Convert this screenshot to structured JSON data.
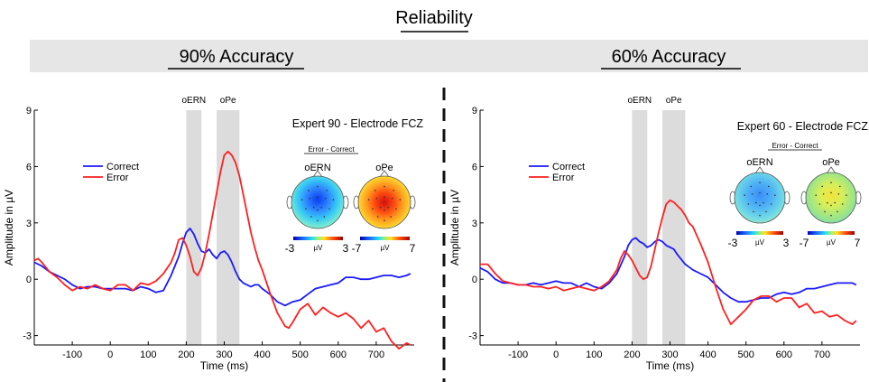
{
  "title": "Reliability",
  "colors": {
    "correct": "#1a1aff",
    "error": "#ff2020",
    "window": "#dcdcdc",
    "banner": "#e6e6e6"
  },
  "chart_data": [
    {
      "type": "line",
      "panel_title": "90% Accuracy",
      "title": "Expert 90 - Electrode FCZ",
      "xlabel": "Time (ms)",
      "ylabel": "Amplitude in  µV",
      "xlim": [
        -200,
        800
      ],
      "ylim": [
        -3.5,
        9
      ],
      "xticks": [
        -100,
        0,
        100,
        200,
        300,
        400,
        500,
        600,
        700
      ],
      "yticks": [
        -3,
        0,
        3,
        6,
        9
      ],
      "legend_position": "upper-left",
      "windows": [
        {
          "label": "oERN",
          "range": [
            200,
            240
          ]
        },
        {
          "label": "oPe",
          "range": [
            280,
            340
          ]
        }
      ],
      "topo_caption": "Error - Correct",
      "topos": [
        {
          "label": "oERN",
          "polarity": "negative",
          "scale": [
            "-3",
            "µV",
            "3"
          ]
        },
        {
          "label": "oPe",
          "polarity": "positive",
          "scale": [
            "-7",
            "µV",
            "7"
          ]
        }
      ],
      "series": [
        {
          "name": "Correct",
          "color": "#1a1aff",
          "x": [
            -200,
            -180,
            -160,
            -140,
            -120,
            -100,
            -80,
            -60,
            -40,
            -20,
            0,
            20,
            40,
            60,
            80,
            100,
            120,
            140,
            160,
            180,
            190,
            200,
            210,
            220,
            230,
            240,
            250,
            260,
            270,
            280,
            290,
            300,
            310,
            320,
            330,
            340,
            350,
            360,
            370,
            380,
            390,
            400,
            420,
            440,
            460,
            480,
            500,
            520,
            540,
            560,
            580,
            600,
            620,
            640,
            660,
            680,
            700,
            720,
            740,
            760,
            780,
            790
          ],
          "y": [
            0.9,
            0.7,
            0.4,
            0.2,
            0.0,
            -0.3,
            -0.5,
            -0.4,
            -0.4,
            -0.5,
            -0.5,
            -0.5,
            -0.5,
            -0.6,
            -0.4,
            -0.5,
            -0.7,
            -0.6,
            0.2,
            1.2,
            1.9,
            2.5,
            2.7,
            2.4,
            1.9,
            1.5,
            1.4,
            1.6,
            1.3,
            1.1,
            1.4,
            1.5,
            1.3,
            0.9,
            0.4,
            0.0,
            -0.2,
            -0.3,
            -0.4,
            -0.3,
            -0.3,
            -0.5,
            -0.8,
            -1.2,
            -1.4,
            -1.2,
            -1.1,
            -0.8,
            -0.5,
            -0.4,
            -0.3,
            -0.2,
            0.1,
            0.1,
            0.0,
            0.0,
            0.1,
            0.2,
            0.2,
            0.1,
            0.2,
            0.3
          ]
        },
        {
          "name": "Error",
          "color": "#ff2020",
          "x": [
            -200,
            -190,
            -180,
            -160,
            -140,
            -120,
            -100,
            -80,
            -60,
            -40,
            -20,
            0,
            20,
            40,
            60,
            80,
            100,
            120,
            140,
            160,
            170,
            180,
            190,
            200,
            210,
            220,
            230,
            240,
            250,
            260,
            270,
            280,
            290,
            300,
            310,
            320,
            330,
            340,
            350,
            360,
            370,
            380,
            390,
            400,
            420,
            440,
            460,
            470,
            480,
            500,
            520,
            540,
            560,
            580,
            600,
            620,
            640,
            660,
            680,
            700,
            720,
            740,
            760,
            780,
            790
          ],
          "y": [
            1.0,
            1.1,
            0.9,
            0.4,
            0.1,
            -0.3,
            -0.6,
            -0.4,
            -0.5,
            -0.3,
            -0.5,
            -0.6,
            -0.3,
            -0.3,
            -0.6,
            -0.2,
            -0.3,
            -0.1,
            0.3,
            0.9,
            1.4,
            2.1,
            2.2,
            1.8,
            1.2,
            0.4,
            0.2,
            0.6,
            1.4,
            2.4,
            3.5,
            4.6,
            5.7,
            6.6,
            6.8,
            6.6,
            6.2,
            5.5,
            4.5,
            3.5,
            2.5,
            1.7,
            1.0,
            0.5,
            -0.7,
            -1.8,
            -2.5,
            -2.6,
            -2.3,
            -1.6,
            -1.3,
            -1.9,
            -1.5,
            -1.8,
            -2.0,
            -1.8,
            -2.1,
            -2.6,
            -2.2,
            -2.8,
            -2.6,
            -3.3,
            -3.7,
            -3.4,
            -3.5
          ]
        }
      ]
    },
    {
      "type": "line",
      "panel_title": "60% Accuracy",
      "title": "Expert 60 - Electrode FCZ",
      "xlabel": "Time (ms)",
      "ylabel": "Amplitude in  µV",
      "xlim": [
        -200,
        800
      ],
      "ylim": [
        -3.5,
        9
      ],
      "xticks": [
        -100,
        0,
        100,
        200,
        300,
        400,
        500,
        600,
        700
      ],
      "yticks": [
        -3,
        0,
        3,
        6,
        9
      ],
      "legend_position": "upper-left",
      "windows": [
        {
          "label": "oERN",
          "range": [
            200,
            240
          ]
        },
        {
          "label": "oPe",
          "range": [
            280,
            340
          ]
        }
      ],
      "topo_caption": "Error - Correct",
      "topos": [
        {
          "label": "oERN",
          "polarity": "negative",
          "scale": [
            "-3",
            "µV",
            "3"
          ]
        },
        {
          "label": "oPe",
          "polarity": "positive",
          "scale": [
            "-7",
            "µV",
            "7"
          ]
        }
      ],
      "series": [
        {
          "name": "Correct",
          "color": "#1a1aff",
          "x": [
            -200,
            -180,
            -160,
            -140,
            -120,
            -100,
            -80,
            -60,
            -40,
            -20,
            0,
            20,
            40,
            60,
            80,
            100,
            120,
            140,
            160,
            180,
            190,
            200,
            210,
            220,
            230,
            240,
            250,
            260,
            270,
            280,
            290,
            300,
            310,
            320,
            340,
            360,
            380,
            400,
            420,
            440,
            460,
            480,
            500,
            520,
            540,
            560,
            580,
            600,
            620,
            640,
            660,
            680,
            700,
            720,
            740,
            760,
            780,
            790
          ],
          "y": [
            0.6,
            0.4,
            0.0,
            -0.2,
            -0.2,
            -0.3,
            -0.3,
            -0.2,
            -0.3,
            -0.2,
            -0.1,
            -0.2,
            -0.2,
            -0.4,
            -0.2,
            -0.4,
            -0.5,
            -0.2,
            0.3,
            1.2,
            1.8,
            2.1,
            2.2,
            2.0,
            1.9,
            1.7,
            1.8,
            2.0,
            2.1,
            2.0,
            1.8,
            1.7,
            1.6,
            1.3,
            0.8,
            0.5,
            0.3,
            0.1,
            -0.3,
            -0.7,
            -1.0,
            -1.2,
            -1.2,
            -1.1,
            -1.0,
            -1.0,
            -0.8,
            -0.7,
            -0.8,
            -0.7,
            -0.5,
            -0.5,
            -0.4,
            -0.3,
            -0.2,
            -0.2,
            -0.2,
            -0.3
          ]
        },
        {
          "name": "Error",
          "color": "#ff2020",
          "x": [
            -200,
            -180,
            -160,
            -140,
            -120,
            -100,
            -80,
            -60,
            -40,
            -20,
            0,
            20,
            40,
            60,
            80,
            100,
            120,
            140,
            160,
            170,
            180,
            190,
            200,
            210,
            220,
            230,
            240,
            250,
            260,
            270,
            280,
            290,
            300,
            310,
            320,
            330,
            340,
            350,
            360,
            380,
            400,
            420,
            440,
            460,
            480,
            500,
            520,
            540,
            560,
            580,
            600,
            620,
            640,
            660,
            680,
            700,
            720,
            740,
            760,
            780,
            790
          ],
          "y": [
            0.8,
            0.8,
            0.3,
            -0.1,
            -0.2,
            -0.3,
            -0.3,
            -0.4,
            -0.4,
            -0.5,
            -0.4,
            -0.6,
            -0.5,
            -0.4,
            -0.5,
            -0.6,
            -0.4,
            -0.1,
            0.5,
            1.1,
            1.5,
            1.3,
            1.0,
            0.6,
            0.2,
            0.0,
            0.1,
            0.7,
            1.6,
            2.5,
            3.3,
            4.0,
            4.2,
            4.1,
            3.9,
            3.7,
            3.4,
            3.0,
            2.8,
            1.9,
            0.9,
            -0.4,
            -1.6,
            -2.4,
            -2.0,
            -1.6,
            -1.1,
            -0.9,
            -0.9,
            -1.2,
            -1.0,
            -1.0,
            -1.5,
            -1.3,
            -1.8,
            -1.7,
            -2.0,
            -1.9,
            -2.2,
            -2.4,
            -2.2
          ]
        }
      ]
    }
  ]
}
